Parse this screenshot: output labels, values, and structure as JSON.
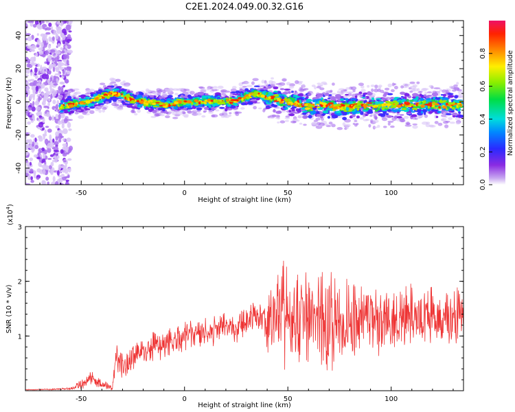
{
  "title": "C2E1.2024.049.00.32.G16",
  "chart_data": [
    {
      "type": "heatmap",
      "xlabel": "Height of straight line (km)",
      "ylabel": "Frequency (Hz)",
      "xlim": [
        -77,
        135
      ],
      "ylim": [
        -50,
        49
      ],
      "xticks": [
        -50,
        0,
        50,
        100
      ],
      "xtick_labels": [
        "-50",
        "0",
        "50",
        "100"
      ],
      "yticks": [
        -40,
        -20,
        0,
        20,
        40
      ],
      "ytick_labels": [
        "-40",
        "-20",
        "0",
        "20",
        "40"
      ],
      "colorbar": {
        "label": "Normalized spectral amplitude",
        "range": [
          0,
          1
        ],
        "ticks": [
          0.0,
          0.2,
          0.4,
          0.6,
          0.8
        ],
        "tick_labels": [
          "0.0",
          "0.2",
          "0.4",
          "0.6",
          "0.8"
        ],
        "colormap": "rainbow"
      },
      "ridge": {
        "x": [
          -60,
          -55,
          -50,
          -45,
          -40,
          -35,
          -30,
          -25,
          -20,
          -15,
          -10,
          -5,
          0,
          5,
          10,
          15,
          20,
          25,
          30,
          35,
          40,
          45,
          50,
          55,
          60,
          65,
          70,
          75,
          80,
          85,
          90,
          95,
          100,
          105,
          110,
          115,
          120,
          125,
          130,
          134
        ],
        "y": [
          -3,
          -2,
          -1,
          1,
          3,
          5,
          4,
          1,
          0,
          -1,
          -2,
          -1,
          0,
          0,
          0,
          0,
          0,
          1,
          3,
          5,
          3,
          1,
          0,
          -1,
          -3,
          -2,
          -2,
          -3,
          -3,
          -2,
          -2,
          -3,
          -2,
          -2,
          -2,
          -2,
          -2,
          -2,
          -2,
          -2
        ]
      },
      "grid": false
    },
    {
      "type": "line",
      "xlabel": "Height of straight line (km)",
      "ylabel": "SNR (10 * v/v)",
      "scale_label": "(x10",
      "scale_exponent": "4",
      "scale_close": ")",
      "xlim": [
        -77,
        135
      ],
      "ylim": [
        0,
        3
      ],
      "xticks": [
        -50,
        0,
        50,
        100
      ],
      "xtick_labels": [
        "-50",
        "0",
        "50",
        "100"
      ],
      "yticks": [
        1,
        2,
        3
      ],
      "ytick_labels": [
        "1",
        "2",
        "3"
      ],
      "line_color": "#ee3333",
      "series": [
        {
          "x": [
            -77,
            -70,
            -60,
            -55,
            -50,
            -45,
            -40,
            -35,
            -33,
            -30,
            -25,
            -20,
            -15,
            -10,
            -5,
            0,
            5,
            10,
            15,
            20,
            25,
            30,
            35,
            38,
            40,
            45,
            48,
            50,
            55,
            60,
            65,
            67,
            70,
            75,
            80,
            85,
            90,
            95,
            100,
            105,
            110,
            115,
            120,
            125,
            130,
            135
          ],
          "values": [
            0.02,
            0.02,
            0.03,
            0.04,
            0.12,
            0.22,
            0.12,
            0.05,
            0.55,
            0.45,
            0.65,
            0.7,
            0.85,
            0.82,
            0.9,
            0.98,
            1.02,
            1.05,
            1.1,
            1.2,
            1.15,
            1.3,
            1.35,
            1.4,
            1.3,
            1.35,
            1.45,
            1.4,
            1.25,
            1.4,
            1.3,
            1.3,
            1.2,
            1.35,
            1.3,
            1.4,
            1.3,
            1.25,
            1.35,
            1.3,
            1.4,
            1.35,
            1.4,
            1.3,
            1.35,
            1.4
          ],
          "envelope": [
            0.01,
            0.01,
            0.02,
            0.03,
            0.1,
            0.15,
            0.1,
            0.05,
            0.4,
            0.3,
            0.35,
            0.4,
            0.35,
            0.4,
            0.35,
            0.3,
            0.3,
            0.3,
            0.3,
            0.3,
            0.3,
            0.3,
            0.35,
            0.4,
            0.7,
            0.9,
            1.6,
            1.1,
            1.1,
            1.1,
            1.1,
            1.3,
            1.0,
            0.9,
            0.85,
            0.8,
            0.75,
            0.7,
            0.7,
            0.7,
            0.65,
            0.65,
            0.6,
            0.6,
            0.6,
            0.6
          ]
        }
      ],
      "grid": false
    }
  ]
}
